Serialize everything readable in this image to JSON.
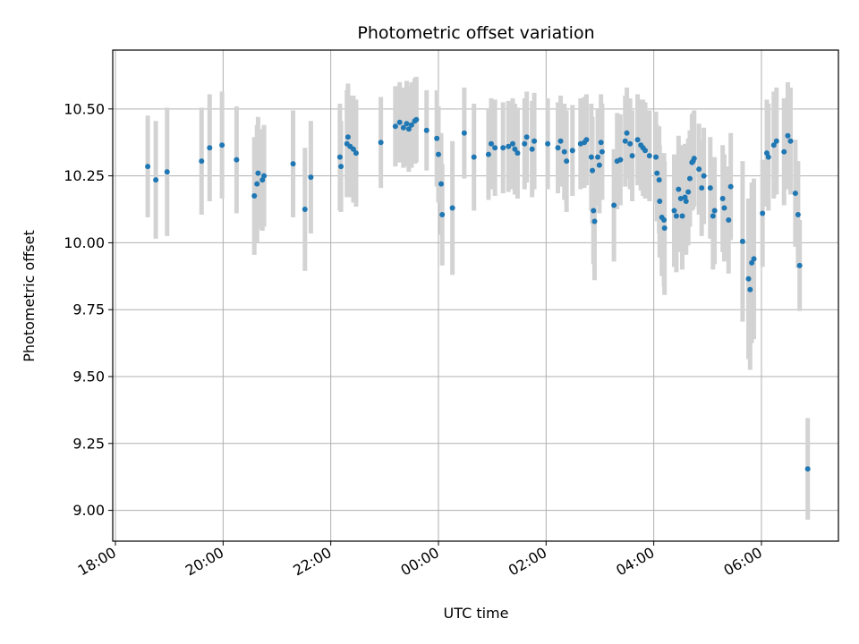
{
  "chart_data": {
    "type": "scatter",
    "title": "Photometric offset variation",
    "xlabel": "UTC time",
    "ylabel": "Photometric offset",
    "x_unit": "hours since 18:00 UTC",
    "xlim": [
      -0.05,
      13.43
    ],
    "ylim": [
      8.885,
      10.72
    ],
    "grid": true,
    "colors": {
      "point": "#1f77b4",
      "errorbar": "#d3d3d3"
    },
    "x_ticks": [
      {
        "value": 0,
        "label": "18:00"
      },
      {
        "value": 2,
        "label": "20:00"
      },
      {
        "value": 4,
        "label": "22:00"
      },
      {
        "value": 6,
        "label": "00:00"
      },
      {
        "value": 8,
        "label": "02:00"
      },
      {
        "value": 10,
        "label": "04:00"
      },
      {
        "value": 12,
        "label": "06:00"
      }
    ],
    "y_ticks": [
      {
        "value": 9.0,
        "label": "9.00"
      },
      {
        "value": 9.25,
        "label": "9.25"
      },
      {
        "value": 9.5,
        "label": "9.50"
      },
      {
        "value": 9.75,
        "label": "9.75"
      },
      {
        "value": 10.0,
        "label": "10.00"
      },
      {
        "value": 10.25,
        "label": "10.25"
      },
      {
        "value": 10.5,
        "label": "10.50"
      }
    ],
    "points": [
      [
        0.6,
        10.285,
        0.19
      ],
      [
        0.75,
        10.235,
        0.22
      ],
      [
        0.96,
        10.265,
        0.24
      ],
      [
        1.6,
        10.305,
        0.2
      ],
      [
        1.75,
        10.355,
        0.2
      ],
      [
        1.98,
        10.365,
        0.2
      ],
      [
        2.25,
        10.31,
        0.2
      ],
      [
        2.58,
        10.175,
        0.22
      ],
      [
        2.63,
        10.22,
        0.22
      ],
      [
        2.65,
        10.26,
        0.21
      ],
      [
        2.73,
        10.235,
        0.19
      ],
      [
        2.76,
        10.25,
        0.19
      ],
      [
        3.3,
        10.295,
        0.2
      ],
      [
        3.52,
        10.125,
        0.23
      ],
      [
        3.63,
        10.245,
        0.21
      ],
      [
        4.17,
        10.32,
        0.2
      ],
      [
        4.19,
        10.285,
        0.17
      ],
      [
        4.3,
        10.37,
        0.2
      ],
      [
        4.32,
        10.395,
        0.2
      ],
      [
        4.36,
        10.36,
        0.19
      ],
      [
        4.42,
        10.35,
        0.2
      ],
      [
        4.47,
        10.335,
        0.2
      ],
      [
        4.93,
        10.375,
        0.17
      ],
      [
        5.2,
        10.435,
        0.15
      ],
      [
        5.28,
        10.45,
        0.15
      ],
      [
        5.35,
        10.43,
        0.15
      ],
      [
        5.41,
        10.445,
        0.16
      ],
      [
        5.45,
        10.425,
        0.16
      ],
      [
        5.5,
        10.44,
        0.16
      ],
      [
        5.56,
        10.455,
        0.16
      ],
      [
        5.59,
        10.46,
        0.16
      ],
      [
        5.78,
        10.42,
        0.15
      ],
      [
        5.97,
        10.39,
        0.18
      ],
      [
        6.0,
        10.33,
        0.18
      ],
      [
        6.05,
        10.22,
        0.19
      ],
      [
        6.07,
        10.105,
        0.19
      ],
      [
        6.26,
        10.13,
        0.25
      ],
      [
        6.48,
        10.41,
        0.17
      ],
      [
        6.66,
        10.32,
        0.2
      ],
      [
        6.93,
        10.33,
        0.17
      ],
      [
        6.98,
        10.37,
        0.17
      ],
      [
        7.05,
        10.355,
        0.18
      ],
      [
        7.2,
        10.355,
        0.17
      ],
      [
        7.3,
        10.36,
        0.17
      ],
      [
        7.38,
        10.37,
        0.17
      ],
      [
        7.42,
        10.35,
        0.17
      ],
      [
        7.47,
        10.335,
        0.17
      ],
      [
        7.6,
        10.37,
        0.17
      ],
      [
        7.64,
        10.395,
        0.17
      ],
      [
        7.74,
        10.35,
        0.18
      ],
      [
        7.78,
        10.38,
        0.18
      ],
      [
        8.03,
        10.37,
        0.17
      ],
      [
        8.22,
        10.355,
        0.17
      ],
      [
        8.27,
        10.38,
        0.17
      ],
      [
        8.34,
        10.34,
        0.18
      ],
      [
        8.38,
        10.305,
        0.19
      ],
      [
        8.49,
        10.345,
        0.17
      ],
      [
        8.64,
        10.37,
        0.17
      ],
      [
        8.71,
        10.375,
        0.17
      ],
      [
        8.75,
        10.385,
        0.17
      ],
      [
        8.84,
        10.32,
        0.2
      ],
      [
        8.86,
        10.27,
        0.2
      ],
      [
        8.88,
        10.12,
        0.2
      ],
      [
        8.9,
        10.08,
        0.22
      ],
      [
        8.96,
        10.32,
        0.18
      ],
      [
        8.99,
        10.29,
        0.18
      ],
      [
        9.02,
        10.375,
        0.18
      ],
      [
        9.04,
        10.34,
        0.18
      ],
      [
        9.26,
        10.14,
        0.21
      ],
      [
        9.32,
        10.305,
        0.18
      ],
      [
        9.38,
        10.31,
        0.17
      ],
      [
        9.47,
        10.38,
        0.17
      ],
      [
        9.5,
        10.41,
        0.17
      ],
      [
        9.56,
        10.37,
        0.17
      ],
      [
        9.6,
        10.325,
        0.17
      ],
      [
        9.7,
        10.385,
        0.17
      ],
      [
        9.76,
        10.365,
        0.17
      ],
      [
        9.8,
        10.355,
        0.18
      ],
      [
        9.84,
        10.345,
        0.18
      ],
      [
        9.92,
        10.325,
        0.17
      ],
      [
        10.04,
        10.32,
        0.17
      ],
      [
        10.06,
        10.26,
        0.18
      ],
      [
        10.1,
        10.235,
        0.2
      ],
      [
        10.11,
        10.155,
        0.21
      ],
      [
        10.15,
        10.095,
        0.22
      ],
      [
        10.19,
        10.085,
        0.25
      ],
      [
        10.2,
        10.055,
        0.25
      ],
      [
        10.38,
        10.12,
        0.21
      ],
      [
        10.42,
        10.1,
        0.21
      ],
      [
        10.46,
        10.2,
        0.2
      ],
      [
        10.5,
        10.165,
        0.2
      ],
      [
        10.53,
        10.1,
        0.2
      ],
      [
        10.58,
        10.17,
        0.2
      ],
      [
        10.6,
        10.155,
        0.2
      ],
      [
        10.64,
        10.19,
        0.2
      ],
      [
        10.67,
        10.24,
        0.18
      ],
      [
        10.71,
        10.3,
        0.18
      ],
      [
        10.73,
        10.305,
        0.18
      ],
      [
        10.75,
        10.315,
        0.18
      ],
      [
        10.84,
        10.275,
        0.17
      ],
      [
        10.89,
        10.205,
        0.18
      ],
      [
        10.93,
        10.25,
        0.18
      ],
      [
        11.05,
        10.205,
        0.19
      ],
      [
        11.1,
        10.1,
        0.2
      ],
      [
        11.13,
        10.12,
        0.2
      ],
      [
        11.28,
        10.165,
        0.2
      ],
      [
        11.31,
        10.13,
        0.2
      ],
      [
        11.39,
        10.085,
        0.2
      ],
      [
        11.43,
        10.21,
        0.2
      ],
      [
        11.65,
        10.005,
        0.3
      ],
      [
        11.76,
        9.865,
        0.3
      ],
      [
        11.79,
        9.825,
        0.3
      ],
      [
        11.82,
        9.925,
        0.3
      ],
      [
        11.86,
        9.94,
        0.3
      ],
      [
        12.02,
        10.11,
        0.2
      ],
      [
        12.1,
        10.335,
        0.2
      ],
      [
        12.13,
        10.32,
        0.2
      ],
      [
        12.23,
        10.365,
        0.2
      ],
      [
        12.28,
        10.38,
        0.2
      ],
      [
        12.42,
        10.34,
        0.2
      ],
      [
        12.49,
        10.4,
        0.2
      ],
      [
        12.54,
        10.38,
        0.2
      ],
      [
        12.63,
        10.185,
        0.2
      ],
      [
        12.68,
        10.105,
        0.2
      ],
      [
        12.71,
        9.915,
        0.17
      ],
      [
        12.86,
        9.155,
        0.19
      ]
    ]
  }
}
